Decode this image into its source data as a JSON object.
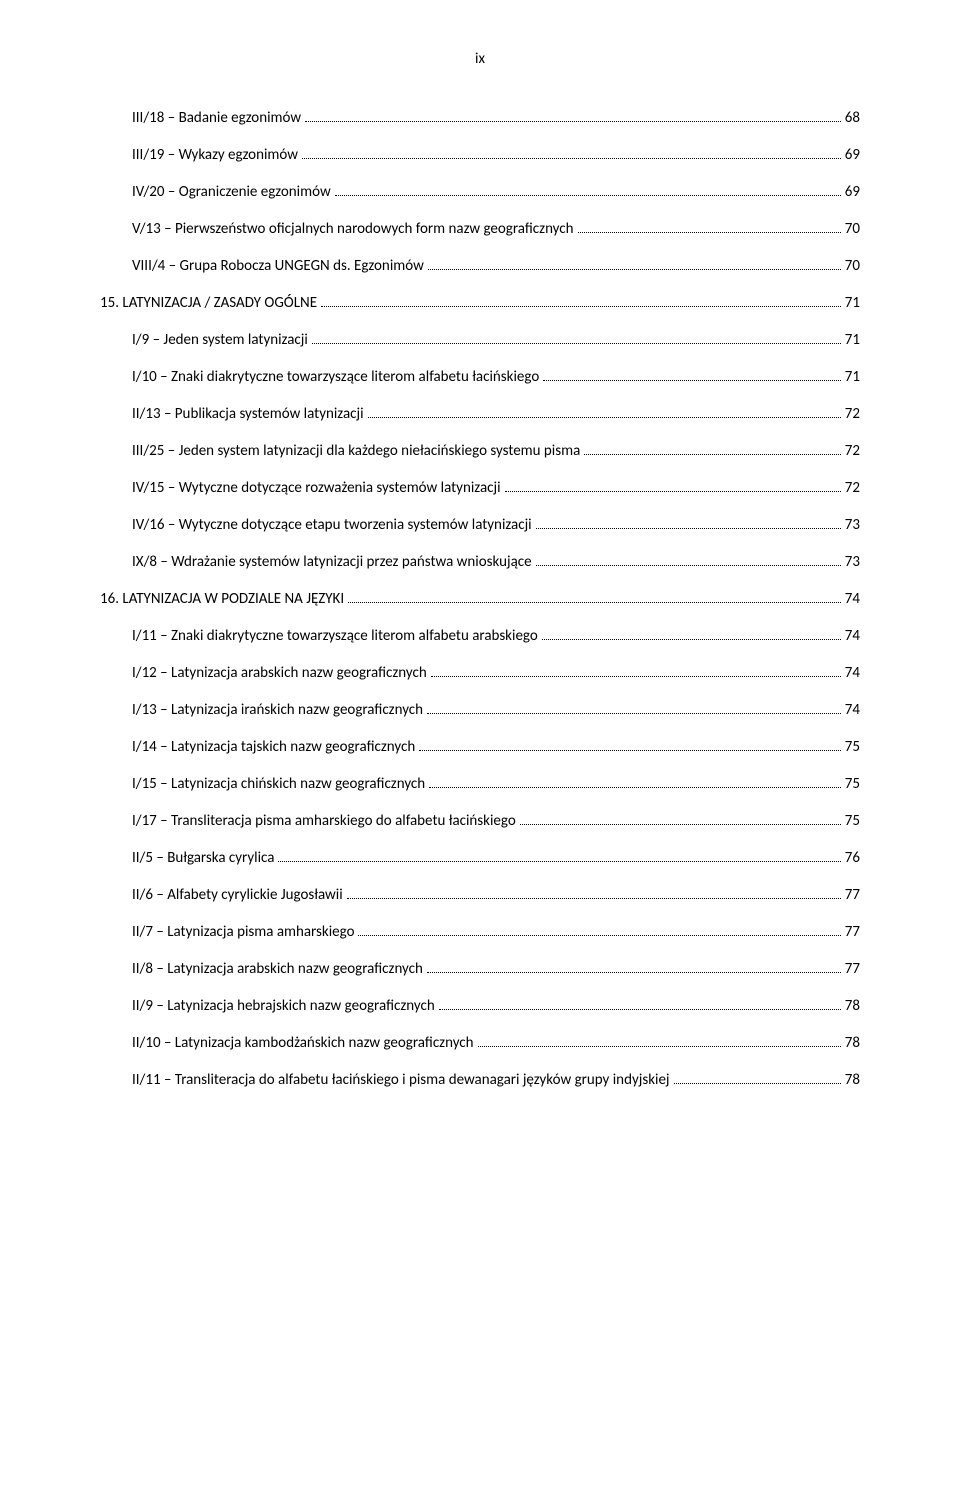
{
  "pageNumber": "ix",
  "entries": [
    {
      "level": 2,
      "title": "III/18 – Badanie egzonimów",
      "page": "68"
    },
    {
      "level": 2,
      "title": "III/19 – Wykazy egzonimów",
      "page": "69"
    },
    {
      "level": 2,
      "title": "IV/20 – Ograniczenie egzonimów",
      "page": "69"
    },
    {
      "level": 2,
      "title": "V/13 – Pierwszeństwo oficjalnych narodowych form nazw geograficznych",
      "page": "70"
    },
    {
      "level": 2,
      "title": "VIII/4 – Grupa Robocza UNGEGN ds. Egzonimów",
      "page": "70"
    },
    {
      "level": 1,
      "title": "15. LATYNIZACJA / ZASADY OGÓLNE",
      "page": "71"
    },
    {
      "level": 2,
      "title": "I/9 – Jeden system latynizacji",
      "page": "71"
    },
    {
      "level": 2,
      "title": "I/10 – Znaki diakrytyczne towarzyszące literom alfabetu łacińskiego",
      "page": "71"
    },
    {
      "level": 2,
      "title": "II/13 – Publikacja systemów latynizacji",
      "page": "72"
    },
    {
      "level": 2,
      "title": "III/25 – Jeden system latynizacji dla każdego niełacińskiego systemu pisma",
      "page": "72"
    },
    {
      "level": 2,
      "title": "IV/15 – Wytyczne dotyczące rozważenia systemów latynizacji",
      "page": "72"
    },
    {
      "level": 2,
      "title": "IV/16 – Wytyczne dotyczące etapu tworzenia systemów latynizacji",
      "page": "73"
    },
    {
      "level": 2,
      "title": "IX/8 – Wdrażanie systemów latynizacji przez państwa wnioskujące",
      "page": "73"
    },
    {
      "level": 1,
      "title": "16. LATYNIZACJA W PODZIALE NA JĘZYKI",
      "page": "74"
    },
    {
      "level": 2,
      "title": "I/11 – Znaki diakrytyczne towarzyszące literom alfabetu arabskiego",
      "page": "74"
    },
    {
      "level": 2,
      "title": "I/12 – Latynizacja arabskich nazw geograficznych",
      "page": "74"
    },
    {
      "level": 2,
      "title": "I/13 – Latynizacja irańskich nazw geograficznych",
      "page": "74"
    },
    {
      "level": 2,
      "title": "I/14 – Latynizacja tajskich nazw geograficznych",
      "page": "75"
    },
    {
      "level": 2,
      "title": "I/15 – Latynizacja chińskich nazw geograficznych",
      "page": "75"
    },
    {
      "level": 2,
      "title": "I/17 – Transliteracja pisma amharskiego do alfabetu łacińskiego",
      "page": "75"
    },
    {
      "level": 2,
      "title": "II/5 – Bułgarska cyrylica",
      "page": "76"
    },
    {
      "level": 2,
      "title": "II/6 – Alfabety cyrylickie Jugosławii",
      "page": "77"
    },
    {
      "level": 2,
      "title": "II/7 – Latynizacja pisma amharskiego",
      "page": "77"
    },
    {
      "level": 2,
      "title": "II/8 – Latynizacja arabskich nazw geograficznych",
      "page": "77"
    },
    {
      "level": 2,
      "title": "II/9 – Latynizacja hebrajskich nazw geograficznych",
      "page": "78"
    },
    {
      "level": 2,
      "title": "II/10 – Latynizacja kambodżańskich nazw geograficznych",
      "page": "78"
    },
    {
      "level": 2,
      "title": "II/11 – Transliteracja do alfabetu łacińskiego i pisma dewanagari języków grupy indyjskiej",
      "page": "78"
    }
  ]
}
